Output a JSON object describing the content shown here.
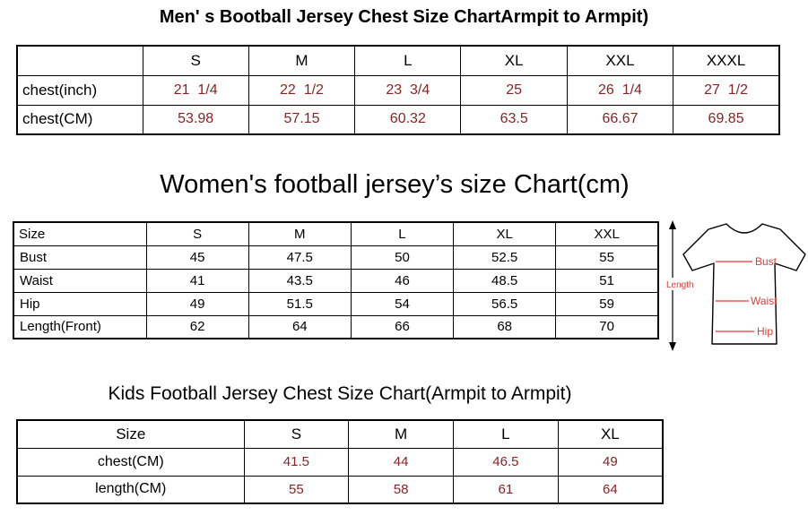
{
  "page": {
    "background": "#ffffff",
    "border_color": "#000000"
  },
  "chart_data": [
    {
      "type": "table",
      "title": "Men' s Bootball Jersey Chest Size ChartArmpit to Armpit)",
      "columns": [
        "",
        "S",
        "M",
        "L",
        "XL",
        "XXL",
        "XXXL"
      ],
      "rows": [
        [
          "chest(inch)",
          "21  1/4",
          "22  1/2",
          "23  3/4",
          "25",
          "26  1/4",
          "27  1/2"
        ],
        [
          "chest(CM)",
          "53.98",
          "57.15",
          "60.32",
          "63.5",
          "66.67",
          "69.85"
        ]
      ],
      "value_color": "#8b2222"
    },
    {
      "type": "table",
      "title": "Women's football jersey’s size Chart(cm)",
      "columns": [
        "Size",
        "S",
        "M",
        "L",
        "XL",
        "XXL"
      ],
      "rows": [
        [
          "Bust",
          "45",
          "47.5",
          "50",
          "52.5",
          "55"
        ],
        [
          "Waist",
          "41",
          "43.5",
          "46",
          "48.5",
          "51"
        ],
        [
          "Hip",
          "49",
          "51.5",
          "54",
          "56.5",
          "59"
        ],
        [
          "Length(Front)",
          "62",
          "64",
          "66",
          "68",
          "70"
        ]
      ],
      "value_color": "#000000"
    },
    {
      "type": "table",
      "title": "Kids Football Jersey Chest Size Chart(Armpit to Armpit)",
      "columns": [
        "Size",
        "S",
        "M",
        "L",
        "XL"
      ],
      "rows": [
        [
          "chest(CM)",
          "41.5",
          "44",
          "46.5",
          "49"
        ],
        [
          "length(CM)",
          "55",
          "58",
          "61",
          "64"
        ]
      ],
      "value_color": "#8b2222"
    }
  ],
  "diagram": {
    "length_label": "Length",
    "bust_label": "Bust",
    "waist_label": "Waist",
    "hip_label": "Hip",
    "label_color": "#e53935"
  }
}
